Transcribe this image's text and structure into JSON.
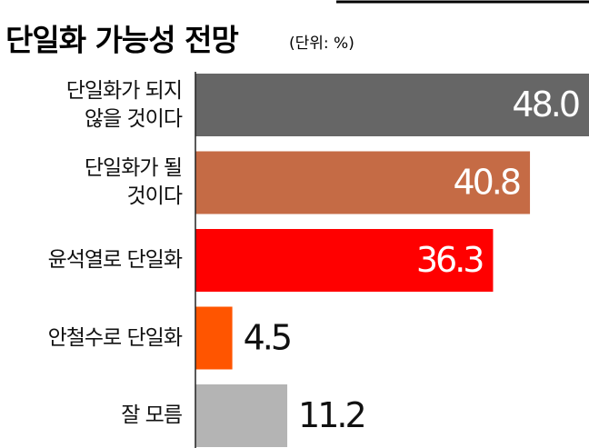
{
  "chart_data": {
    "type": "hbar",
    "title": "단일화 가능성 전망",
    "subtitle": "(단위: %)",
    "categories": [
      "단일화가 되지\n않을 것이다",
      "단일화가 될\n것이다",
      "윤석열로 단일화",
      "안철수로 단일화",
      "잘 모름"
    ],
    "values": [
      48.0,
      40.8,
      36.3,
      4.5,
      11.2
    ],
    "value_labels": [
      "48.0",
      "40.8",
      "36.3",
      "4.5",
      "11.2"
    ],
    "colors": [
      "#666666",
      "#c56b45",
      "#ff0000",
      "#ff5500",
      "#b4b4b4"
    ],
    "xlim": [
      0,
      48
    ]
  }
}
